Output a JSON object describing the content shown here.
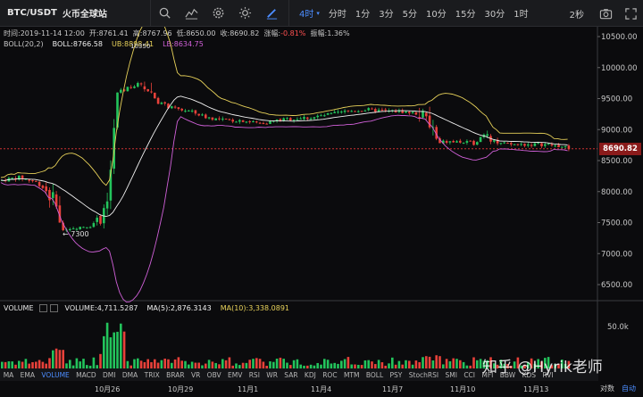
{
  "toolbar": {
    "pair": "BTC/USDT",
    "exchange": "火币全球站",
    "intervals": [
      {
        "label": "4时",
        "active": true,
        "caret": "▾"
      },
      {
        "label": "分时",
        "active": false
      },
      {
        "label": "1分",
        "active": false
      },
      {
        "label": "3分",
        "active": false
      },
      {
        "label": "5分",
        "active": false
      },
      {
        "label": "10分",
        "active": false
      },
      {
        "label": "15分",
        "active": false
      },
      {
        "label": "30分",
        "active": false
      },
      {
        "label": "1时",
        "active": false
      }
    ],
    "refresh": "2秒",
    "icons": [
      "search-icon",
      "indicator-icon",
      "settings-icon",
      "theme-icon",
      "draw-icon"
    ]
  },
  "info": {
    "time": "时间:2019-11-14 12:00",
    "open": "开:8761.41",
    "high": "高:8767.96",
    "low": "低:8650.00",
    "close": "收:8690.82",
    "change_label": "涨幅:",
    "change": "-0.81%",
    "amplitude": "振幅:1.36%"
  },
  "boll": {
    "name": "BOLL(20,2)",
    "mid": "BOLL:8766.58",
    "ub": "UB:8898.41",
    "lb": "LB:8634.75"
  },
  "price_axis": {
    "ticks": [
      "10500.00",
      "10000.00",
      "9500.00",
      "9000.00",
      "8500.00",
      "8000.00",
      "7500.00",
      "7000.00",
      "6500.00"
    ],
    "current": "8690.82"
  },
  "markers": {
    "low": "← 7300",
    "high": "10350"
  },
  "volume": {
    "label": "VOLUME",
    "value": "VOLUME:4,711.5287",
    "ma5": "MA(5):2,876.3143",
    "ma10": "MA(10):3,338.0891",
    "tick": "50.0k"
  },
  "indicators": [
    "MA",
    "EMA",
    "VOLUME",
    "MACD",
    "DMI",
    "DMA",
    "TRIX",
    "BRAR",
    "VR",
    "OBV",
    "EMV",
    "RSI",
    "WR",
    "SAR",
    "KDJ",
    "ROC",
    "MTM",
    "BOLL",
    "PSY",
    "StochRSI",
    "SMI",
    "CCI",
    "MFI",
    "BBW",
    "KDS",
    "RVI"
  ],
  "active_indicator": "VOLUME",
  "time_axis": [
    "10月26",
    "10月29",
    "11月1",
    "11月4",
    "11月7",
    "11月10",
    "11月13"
  ],
  "bottom": {
    "log": "对数",
    "auto": "自动"
  },
  "watermark": "知乎 @Hyrik老师",
  "colors": {
    "up": "#23c45c",
    "down": "#e8413a",
    "boll_mid": "#f0f0f0",
    "boll_ub": "#e8d25a",
    "boll_lb": "#d060d8",
    "accent": "#4c8dff"
  }
}
